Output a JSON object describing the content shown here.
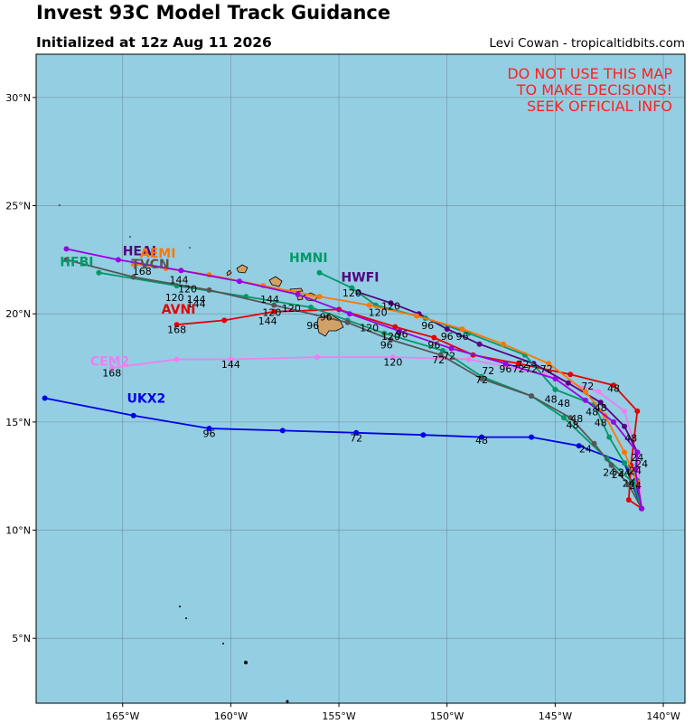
{
  "header": {
    "title": "Invest 93C Model Track Guidance",
    "initialized": "Initialized at 12z Aug 11 2026",
    "credit": "Levi Cowan - tropicaltidbits.com"
  },
  "warning": [
    "DO NOT USE THIS MAP",
    "TO MAKE DECISIONS!",
    "SEEK OFFICIAL INFO"
  ],
  "colors": {
    "ocean": "#94cee3",
    "land": "#d2a168",
    "warning": "#ff2020"
  },
  "axes": {
    "lon_range": [
      -169,
      -139
    ],
    "lat_range": [
      2,
      32
    ],
    "lat_ticks": [
      {
        "v": 30,
        "label": "30°N"
      },
      {
        "v": 25,
        "label": "25°N"
      },
      {
        "v": 20,
        "label": "20°N"
      },
      {
        "v": 15,
        "label": "15°N"
      },
      {
        "v": 10,
        "label": "10°N"
      },
      {
        "v": 5,
        "label": "5°N"
      }
    ],
    "lon_ticks": [
      {
        "v": -165,
        "label": "165°W"
      },
      {
        "v": -160,
        "label": "160°W"
      },
      {
        "v": -155,
        "label": "155°W"
      },
      {
        "v": -150,
        "label": "150°W"
      },
      {
        "v": -145,
        "label": "145°W"
      },
      {
        "v": -140,
        "label": "140°W"
      }
    ]
  },
  "chart_data": {
    "type": "map",
    "tracks": [
      {
        "name": "UKX2",
        "color": "#0000e6",
        "label_at": [
          -164.8,
          15.9
        ],
        "points": [
          [
            -141.0,
            11.0
          ],
          [
            -141.8,
            13.1
          ],
          [
            -143.9,
            13.9
          ],
          [
            -146.1,
            14.3
          ],
          [
            -148.4,
            14.3
          ],
          [
            -151.1,
            14.4
          ],
          [
            -154.2,
            14.5
          ],
          [
            -157.6,
            14.6
          ],
          [
            -161.0,
            14.7
          ],
          [
            -164.5,
            15.3
          ],
          [
            -168.6,
            16.1
          ]
        ],
        "hour_labels": [
          {
            "h": "24",
            "at": [
              -143.6,
              13.6
            ]
          },
          {
            "h": "48",
            "at": [
              -148.4,
              14.0
            ]
          },
          {
            "h": "72",
            "at": [
              -154.2,
              14.1
            ]
          },
          {
            "h": "96",
            "at": [
              -161.0,
              14.3
            ]
          }
        ]
      },
      {
        "name": "CEM2",
        "color": "#f07ef0",
        "label_at": [
          -166.5,
          17.6
        ],
        "points": [
          [
            -141.0,
            11.0
          ],
          [
            -141.2,
            13.5
          ],
          [
            -141.8,
            15.5
          ],
          [
            -143.0,
            16.4
          ],
          [
            -145.5,
            17.2
          ],
          [
            -149.0,
            17.9
          ],
          [
            -152.5,
            18.0
          ],
          [
            -156.0,
            18.0
          ],
          [
            -160.0,
            17.9
          ],
          [
            -162.5,
            17.9
          ],
          [
            -165.5,
            17.5
          ]
        ],
        "hour_labels": [
          {
            "h": "120",
            "at": [
              -152.5,
              17.6
            ]
          },
          {
            "h": "144",
            "at": [
              -160.0,
              17.5
            ]
          },
          {
            "h": "168",
            "at": [
              -165.5,
              17.1
            ]
          }
        ]
      },
      {
        "name": "AVNI",
        "color": "#e60000",
        "label_at": [
          -163.2,
          20.0
        ],
        "points": [
          [
            -141.0,
            11.0
          ],
          [
            -141.6,
            11.4
          ],
          [
            -141.5,
            13.0
          ],
          [
            -141.2,
            15.5
          ],
          [
            -142.3,
            16.7
          ],
          [
            -144.3,
            17.2
          ],
          [
            -146.7,
            17.7
          ],
          [
            -148.8,
            18.1
          ],
          [
            -150.6,
            18.9
          ],
          [
            -152.4,
            19.4
          ],
          [
            -155.0,
            20.2
          ],
          [
            -158.0,
            20.1
          ],
          [
            -160.3,
            19.7
          ],
          [
            -162.5,
            19.5
          ]
        ],
        "hour_labels": [
          {
            "h": "168",
            "at": [
              -162.5,
              19.1
            ]
          }
        ]
      },
      {
        "name": "HWFI",
        "color": "#550080",
        "label_at": [
          -154.9,
          21.5
        ],
        "points": [
          [
            -141.0,
            11.0
          ],
          [
            -141.3,
            12.3
          ],
          [
            -141.2,
            13.6
          ],
          [
            -141.8,
            14.8
          ],
          [
            -142.9,
            15.9
          ],
          [
            -144.4,
            16.8
          ],
          [
            -146.0,
            17.7
          ],
          [
            -148.5,
            18.6
          ],
          [
            -150.0,
            19.3
          ],
          [
            -151.3,
            20.0
          ],
          [
            -152.6,
            20.5
          ],
          [
            -154.1,
            21.0
          ]
        ],
        "hour_labels": [
          {
            "h": "120",
            "at": [
              -152.6,
              20.2
            ]
          }
        ]
      },
      {
        "name": "HMNI",
        "color": "#009966",
        "label_at": [
          -157.3,
          22.4
        ],
        "points": [
          [
            -141.0,
            11.0
          ],
          [
            -141.2,
            12.3
          ],
          [
            -141.8,
            13.1
          ],
          [
            -142.5,
            14.3
          ],
          [
            -143.2,
            15.8
          ],
          [
            -145.0,
            16.5
          ],
          [
            -146.4,
            18.1
          ],
          [
            -149.0,
            19.1
          ],
          [
            -151.0,
            19.8
          ],
          [
            -153.3,
            20.4
          ],
          [
            -154.4,
            21.2
          ],
          [
            -155.9,
            21.9
          ]
        ],
        "hour_labels": [
          {
            "h": "120",
            "at": [
              -154.4,
              20.8
            ]
          }
        ]
      },
      {
        "name": "HEAI",
        "color": "#550080",
        "label_at": [
          -165.0,
          22.7
        ],
        "points": [],
        "hour_labels": []
      },
      {
        "name": "AEMI",
        "color": "#ff7700",
        "label_at": [
          -164.2,
          22.6
        ],
        "points": [
          [
            -141.0,
            11.0
          ],
          [
            -141.2,
            12.2
          ],
          [
            -141.8,
            13.6
          ],
          [
            -142.7,
            15.3
          ],
          [
            -143.6,
            16.4
          ],
          [
            -145.3,
            17.7
          ],
          [
            -147.4,
            18.6
          ],
          [
            -149.3,
            19.3
          ],
          [
            -151.4,
            19.9
          ],
          [
            -153.6,
            20.4
          ],
          [
            -155.9,
            20.8
          ],
          [
            -158.5,
            21.3
          ],
          [
            -161.0,
            21.8
          ],
          [
            -163.0,
            22.1
          ],
          [
            -164.5,
            22.3
          ]
        ],
        "hour_labels": []
      },
      {
        "name": "HFBI",
        "color": "#009966",
        "label_at": [
          -167.9,
          22.2
        ],
        "points": [
          [
            -141.0,
            11.0
          ],
          [
            -141.4,
            12.2
          ],
          [
            -142.6,
            13.3
          ],
          [
            -144.6,
            15.2
          ],
          [
            -146.1,
            16.2
          ],
          [
            -148.4,
            17.1
          ],
          [
            -150.2,
            18.3
          ],
          [
            -152.9,
            19.1
          ],
          [
            -154.6,
            19.7
          ],
          [
            -156.3,
            20.3
          ],
          [
            -159.3,
            20.8
          ],
          [
            -162.5,
            21.3
          ],
          [
            -166.1,
            21.9
          ]
        ],
        "hour_labels": [
          {
            "h": "120",
            "at": [
              -152.6,
              18.8
            ]
          }
        ]
      },
      {
        "name": "TVCN",
        "color": "#555555",
        "label_at": [
          -164.6,
          22.1
        ],
        "points": [
          [
            -141.0,
            11.0
          ],
          [
            -141.6,
            12.1
          ],
          [
            -142.4,
            13.0
          ],
          [
            -143.2,
            14.0
          ],
          [
            -144.3,
            15.2
          ],
          [
            -146.1,
            16.2
          ],
          [
            -148.4,
            17.0
          ],
          [
            -150.3,
            18.1
          ],
          [
            -152.6,
            18.8
          ],
          [
            -154.6,
            19.6
          ],
          [
            -158.0,
            20.4
          ],
          [
            -161.0,
            21.1
          ],
          [
            -164.5,
            21.7
          ],
          [
            -167.6,
            22.5
          ]
        ],
        "hour_labels": [
          {
            "h": "168",
            "at": [
              -164.1,
              21.8
            ]
          },
          {
            "h": "144",
            "at": [
              -161.6,
              20.5
            ]
          }
        ]
      },
      {
        "name": "",
        "color": "#9900e6",
        "label_at": null,
        "points": [
          [
            -141.0,
            11.0
          ],
          [
            -141.3,
            12.8
          ],
          [
            -141.2,
            13.6
          ],
          [
            -142.3,
            15.0
          ],
          [
            -143.6,
            16.0
          ],
          [
            -145.0,
            17.0
          ],
          [
            -147.3,
            17.7
          ],
          [
            -149.8,
            18.4
          ],
          [
            -152.2,
            19.2
          ],
          [
            -154.5,
            20.0
          ],
          [
            -156.9,
            20.9
          ],
          [
            -159.6,
            21.5
          ],
          [
            -162.3,
            22.0
          ],
          [
            -165.2,
            22.5
          ],
          [
            -167.6,
            23.0
          ]
        ],
        "hour_labels": []
      }
    ],
    "extra_hour_labels": [
      {
        "h": "144",
        "at": [
          -162.4,
          21.4
        ]
      },
      {
        "h": "120",
        "at": [
          -162.0,
          21.0
        ]
      },
      {
        "h": "120",
        "at": [
          -162.6,
          20.6
        ]
      },
      {
        "h": "144",
        "at": [
          -161.6,
          20.3
        ]
      },
      {
        "h": "144",
        "at": [
          -158.2,
          20.5
        ]
      },
      {
        "h": "120",
        "at": [
          -157.2,
          20.1
        ]
      },
      {
        "h": "120",
        "at": [
          -158.1,
          19.9
        ]
      },
      {
        "h": "144",
        "at": [
          -158.3,
          19.5
        ]
      },
      {
        "h": "96",
        "at": [
          -155.6,
          19.7
        ]
      },
      {
        "h": "96",
        "at": [
          -156.2,
          19.3
        ]
      },
      {
        "h": "120",
        "at": [
          -153.2,
          19.9
        ]
      },
      {
        "h": "120",
        "at": [
          -153.6,
          19.2
        ]
      },
      {
        "h": "96",
        "at": [
          -152.1,
          18.9
        ]
      },
      {
        "h": "96",
        "at": [
          -152.8,
          18.4
        ]
      },
      {
        "h": "96",
        "at": [
          -150.9,
          19.3
        ]
      },
      {
        "h": "96",
        "at": [
          -150.0,
          18.8
        ]
      },
      {
        "h": "96",
        "at": [
          -149.3,
          18.8
        ]
      },
      {
        "h": "96",
        "at": [
          -150.6,
          18.4
        ]
      },
      {
        "h": "72",
        "at": [
          -150.4,
          17.7
        ]
      },
      {
        "h": "72",
        "at": [
          -149.9,
          17.9
        ]
      },
      {
        "h": "72",
        "at": [
          -148.1,
          17.2
        ]
      },
      {
        "h": "72",
        "at": [
          -148.4,
          16.8
        ]
      },
      {
        "h": "96",
        "at": [
          -147.3,
          17.3
        ]
      },
      {
        "h": "72",
        "at": [
          -146.7,
          17.3
        ]
      },
      {
        "h": "72",
        "at": [
          -146.1,
          17.3
        ]
      },
      {
        "h": "72",
        "at": [
          -146.5,
          17.5
        ]
      },
      {
        "h": "72",
        "at": [
          -145.4,
          17.3
        ]
      },
      {
        "h": "72",
        "at": [
          -143.5,
          16.5
        ]
      },
      {
        "h": "48",
        "at": [
          -142.3,
          16.4
        ]
      },
      {
        "h": "48",
        "at": [
          -145.2,
          15.9
        ]
      },
      {
        "h": "48",
        "at": [
          -144.6,
          15.7
        ]
      },
      {
        "h": "48",
        "at": [
          -143.3,
          15.3
        ]
      },
      {
        "h": "48",
        "at": [
          -142.9,
          15.5
        ]
      },
      {
        "h": "48",
        "at": [
          -144.0,
          15.0
        ]
      },
      {
        "h": "48",
        "at": [
          -144.2,
          14.7
        ]
      },
      {
        "h": "48",
        "at": [
          -142.9,
          14.8
        ]
      },
      {
        "h": "48",
        "at": [
          -141.5,
          14.1
        ]
      },
      {
        "h": "24",
        "at": [
          -141.2,
          13.2
        ]
      },
      {
        "h": "24",
        "at": [
          -141.0,
          12.9
        ]
      },
      {
        "h": "24",
        "at": [
          -142.5,
          12.5
        ]
      },
      {
        "h": "24",
        "at": [
          -142.1,
          12.4
        ]
      },
      {
        "h": "24",
        "at": [
          -141.8,
          12.5
        ]
      },
      {
        "h": "24",
        "at": [
          -141.3,
          12.6
        ]
      },
      {
        "h": "24",
        "at": [
          -141.6,
          12.0
        ]
      },
      {
        "h": "24",
        "at": [
          -141.3,
          11.9
        ]
      }
    ]
  }
}
